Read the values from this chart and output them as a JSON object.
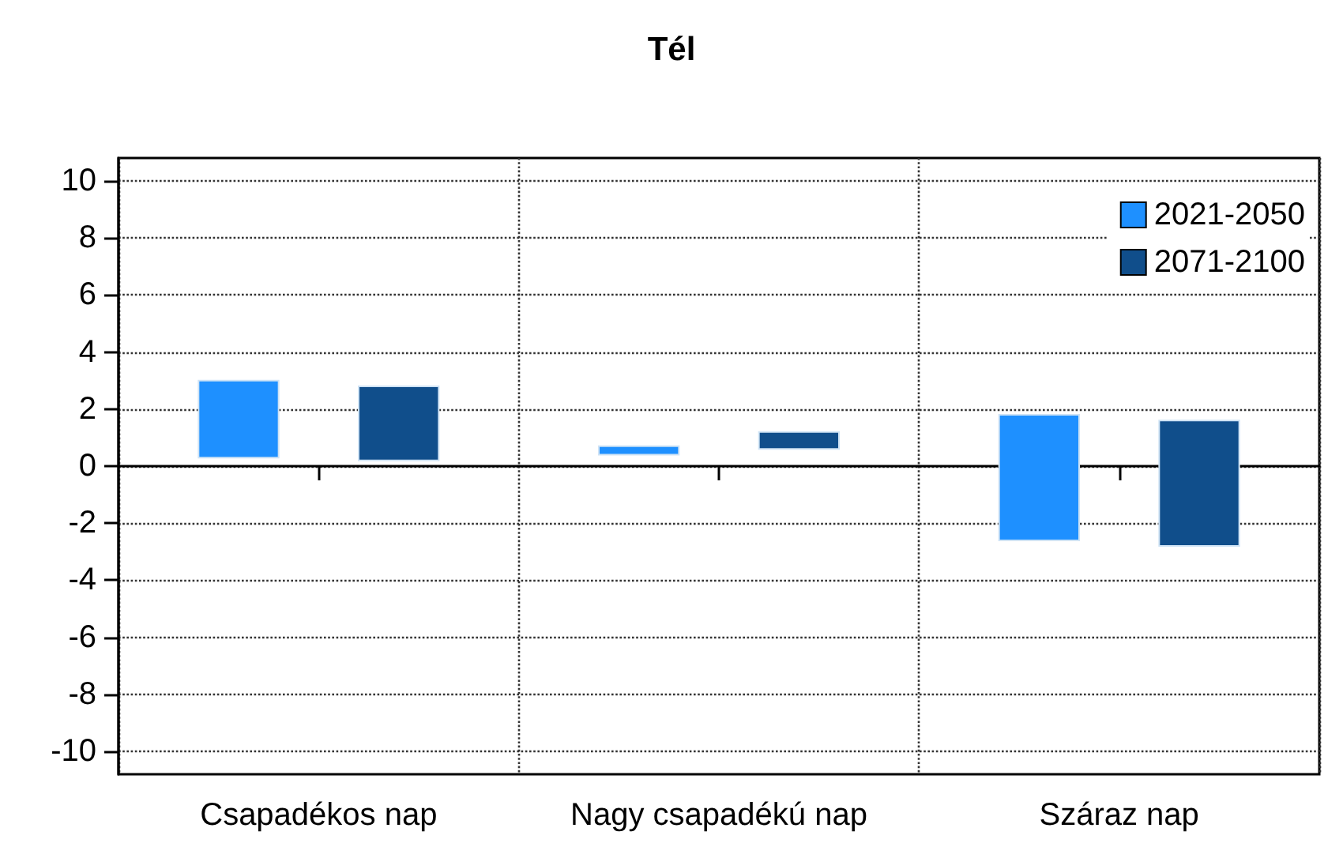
{
  "chart_data": {
    "type": "bar",
    "title": "Tél",
    "categories": [
      "Csapadékos nap",
      "Nagy csapadékú nap",
      "Száraz nap"
    ],
    "series": [
      {
        "name": "2021-2050",
        "color": "#1e90ff",
        "values": [
          2.7,
          0.3,
          4.4
        ],
        "base": [
          0.3,
          0.4,
          -2.6
        ]
      },
      {
        "name": "2071-2100",
        "color": "#104e8b",
        "values": [
          2.6,
          0.6,
          4.4
        ],
        "base": [
          0.2,
          0.6,
          -2.8
        ]
      }
    ],
    "ylim": [
      -10.8,
      10.8
    ],
    "yticks": [
      -10,
      -8,
      -6,
      -4,
      -2,
      0,
      2,
      4,
      6,
      8,
      10
    ],
    "grid": true,
    "legend": "top right"
  }
}
